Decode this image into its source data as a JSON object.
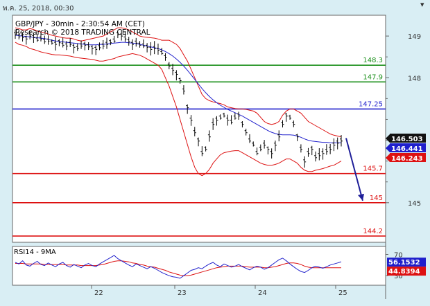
{
  "header": {
    "date_text": "พ.ค. 25, 2018, 00:30"
  },
  "chart_data": {
    "type": "line",
    "title": "GBP/JPY - 30min - 2:30:54 AM (CET)",
    "subtitle": "Research © 2018 TRADING CENTRAL",
    "xlabel": "",
    "ylabel": "",
    "x_tick_labels": [
      "22",
      "23",
      "24",
      "25"
    ],
    "y_tick_labels": [
      "149",
      "148",
      "145"
    ],
    "ylim": [
      144.2,
      149.5
    ],
    "grid": false,
    "levels": [
      {
        "value": 148.3,
        "label": "148.3",
        "color": "#1a8f1a"
      },
      {
        "value": 147.9,
        "label": "147.9",
        "color": "#1a8f1a"
      },
      {
        "value": 147.25,
        "label": "147.25",
        "color": "#1f1fcc"
      },
      {
        "value": 145.7,
        "label": "145.7",
        "color": "#dd1111"
      },
      {
        "value": 145,
        "label": "145",
        "color": "#dd1111"
      },
      {
        "value": 144.2,
        "label": "144.2",
        "color": "#dd1111"
      }
    ],
    "price_tags": [
      {
        "value": 146.503,
        "label": "146.503",
        "bg": "#111111",
        "fg": "#ffffff"
      },
      {
        "value": 146.441,
        "label": "146.441",
        "bg": "#1f1fcc",
        "fg": "#ffffff"
      },
      {
        "value": 146.243,
        "label": "146.243",
        "bg": "#dd1111",
        "fg": "#ffffff"
      }
    ],
    "arrow": {
      "from": 146.55,
      "to": 145.05,
      "color": "#1f1f99"
    },
    "price": [
      149.05,
      149.0,
      148.98,
      148.95,
      149.02,
      148.98,
      148.92,
      148.95,
      148.88,
      148.9,
      148.85,
      148.82,
      148.86,
      148.8,
      148.78,
      148.82,
      148.75,
      148.72,
      148.78,
      148.8,
      148.76,
      148.72,
      148.7,
      148.74,
      148.78,
      148.82,
      148.86,
      148.9,
      149.05,
      149.02,
      148.95,
      148.88,
      148.82,
      148.85,
      148.8,
      148.78,
      148.75,
      148.7,
      148.72,
      148.68,
      148.6,
      148.5,
      148.3,
      148.2,
      148.1,
      147.95,
      147.7,
      147.3,
      147.0,
      146.7,
      146.5,
      146.2,
      146.3,
      146.6,
      146.9,
      147.0,
      147.05,
      147.1,
      147.0,
      146.95,
      147.05,
      147.1,
      146.9,
      146.7,
      146.5,
      146.4,
      146.2,
      146.3,
      146.4,
      146.3,
      146.2,
      146.4,
      146.6,
      146.9,
      147.1,
      147.05,
      146.9,
      146.6,
      146.3,
      146.0,
      146.2,
      146.3,
      146.1,
      146.15,
      146.2,
      146.25,
      146.3,
      146.4,
      146.45,
      146.5
    ],
    "bb_upper": [
      149.2,
      149.18,
      149.15,
      149.15,
      149.18,
      149.16,
      149.12,
      149.1,
      149.08,
      149.05,
      149.02,
      149.0,
      148.98,
      148.96,
      148.95,
      148.95,
      148.93,
      148.9,
      148.88,
      148.9,
      148.92,
      148.94,
      148.96,
      148.98,
      149.0,
      149.05,
      149.1,
      149.15,
      149.2,
      149.2,
      149.18,
      149.15,
      149.1,
      149.05,
      149.0,
      148.98,
      148.97,
      148.96,
      148.95,
      148.93,
      148.9,
      148.9,
      148.9,
      148.85,
      148.8,
      148.7,
      148.55,
      148.4,
      148.2,
      148.0,
      147.8,
      147.6,
      147.5,
      147.45,
      147.42,
      147.4,
      147.38,
      147.35,
      147.3,
      147.28,
      147.26,
      147.25,
      147.25,
      147.24,
      147.22,
      147.2,
      147.15,
      147.05,
      146.95,
      146.9,
      146.88,
      146.9,
      146.95,
      147.1,
      147.2,
      147.25,
      147.25,
      147.2,
      147.15,
      147.05,
      146.95,
      146.9,
      146.85,
      146.8,
      146.75,
      146.7,
      146.65,
      146.62,
      146.6,
      146.58
    ],
    "bb_lower": [
      148.85,
      148.8,
      148.78,
      148.75,
      148.7,
      148.68,
      148.65,
      148.62,
      148.6,
      148.58,
      148.56,
      148.55,
      148.55,
      148.54,
      148.53,
      148.52,
      148.5,
      148.48,
      148.47,
      148.46,
      148.45,
      148.44,
      148.42,
      148.4,
      148.4,
      148.42,
      148.44,
      148.46,
      148.5,
      148.52,
      148.54,
      148.56,
      148.58,
      148.56,
      148.54,
      148.5,
      148.45,
      148.4,
      148.35,
      148.3,
      148.2,
      148.0,
      147.8,
      147.55,
      147.3,
      147.0,
      146.7,
      146.4,
      146.1,
      145.85,
      145.7,
      145.65,
      145.7,
      145.8,
      145.95,
      146.05,
      146.15,
      146.2,
      146.22,
      146.24,
      146.25,
      146.25,
      146.2,
      146.15,
      146.1,
      146.05,
      146.0,
      145.95,
      145.92,
      145.9,
      145.9,
      145.92,
      145.95,
      146.0,
      146.05,
      146.05,
      146.0,
      145.95,
      145.85,
      145.78,
      145.75,
      145.75,
      145.78,
      145.8,
      145.82,
      145.85,
      145.88,
      145.9,
      145.95,
      146.0
    ],
    "ma_blue": [
      149.02,
      149.01,
      149.0,
      148.99,
      148.98,
      148.97,
      148.96,
      148.95,
      148.94,
      148.92,
      148.9,
      148.88,
      148.87,
      148.86,
      148.85,
      148.84,
      148.83,
      148.82,
      148.81,
      148.8,
      148.79,
      148.79,
      148.79,
      148.8,
      148.8,
      148.81,
      148.82,
      148.83,
      148.84,
      148.85,
      148.85,
      148.84,
      148.83,
      148.82,
      148.8,
      148.78,
      148.76,
      148.74,
      148.72,
      148.7,
      148.67,
      148.63,
      148.58,
      148.52,
      148.45,
      148.37,
      148.28,
      148.18,
      148.07,
      147.96,
      147.85,
      147.74,
      147.64,
      147.55,
      147.47,
      147.4,
      147.34,
      147.29,
      147.24,
      147.2,
      147.16,
      147.12,
      147.08,
      147.03,
      146.98,
      146.93,
      146.88,
      146.83,
      146.78,
      146.73,
      146.69,
      146.66,
      146.64,
      146.63,
      146.63,
      146.63,
      146.62,
      146.6,
      146.57,
      146.53,
      146.5,
      146.48,
      146.47,
      146.46,
      146.45,
      146.45,
      146.44,
      146.44,
      146.44,
      146.44
    ],
    "rsi": {
      "label": "RSI14 - 9MA",
      "levels": [
        70,
        30
      ],
      "current": 56.1532,
      "ma": 44.8394,
      "series": [
        55,
        52,
        58,
        50,
        48,
        53,
        57,
        51,
        49,
        54,
        50,
        47,
        52,
        55,
        49,
        46,
        51,
        48,
        45,
        50,
        53,
        49,
        47,
        52,
        56,
        60,
        64,
        68,
        62,
        58,
        54,
        50,
        47,
        52,
        49,
        46,
        43,
        47,
        44,
        40,
        36,
        33,
        30,
        28,
        27,
        25,
        30,
        35,
        40,
        42,
        45,
        43,
        48,
        52,
        55,
        50,
        47,
        52,
        49,
        46,
        48,
        51,
        47,
        44,
        41,
        45,
        48,
        46,
        42,
        45,
        50,
        55,
        60,
        63,
        58,
        52,
        47,
        42,
        38,
        36,
        40,
        45,
        48,
        46,
        44,
        47,
        50,
        52,
        54,
        56.15
      ],
      "ma_series": [
        53,
        53,
        53,
        52,
        52,
        52,
        52,
        52,
        51,
        51,
        51,
        51,
        51,
        51,
        50,
        50,
        50,
        50,
        49,
        49,
        49,
        49,
        49,
        50,
        51,
        53,
        55,
        57,
        58,
        58,
        57,
        56,
        54,
        53,
        51,
        50,
        48,
        47,
        46,
        44,
        42,
        40,
        37,
        35,
        33,
        31,
        30,
        30,
        31,
        33,
        35,
        37,
        39,
        41,
        43,
        45,
        46,
        47,
        48,
        48,
        48,
        48,
        48,
        47,
        46,
        46,
        46,
        46,
        45,
        45,
        46,
        47,
        49,
        51,
        53,
        54,
        54,
        53,
        51,
        48,
        46,
        45,
        45,
        45,
        45,
        45,
        45,
        45,
        44.9,
        44.84
      ]
    }
  }
}
